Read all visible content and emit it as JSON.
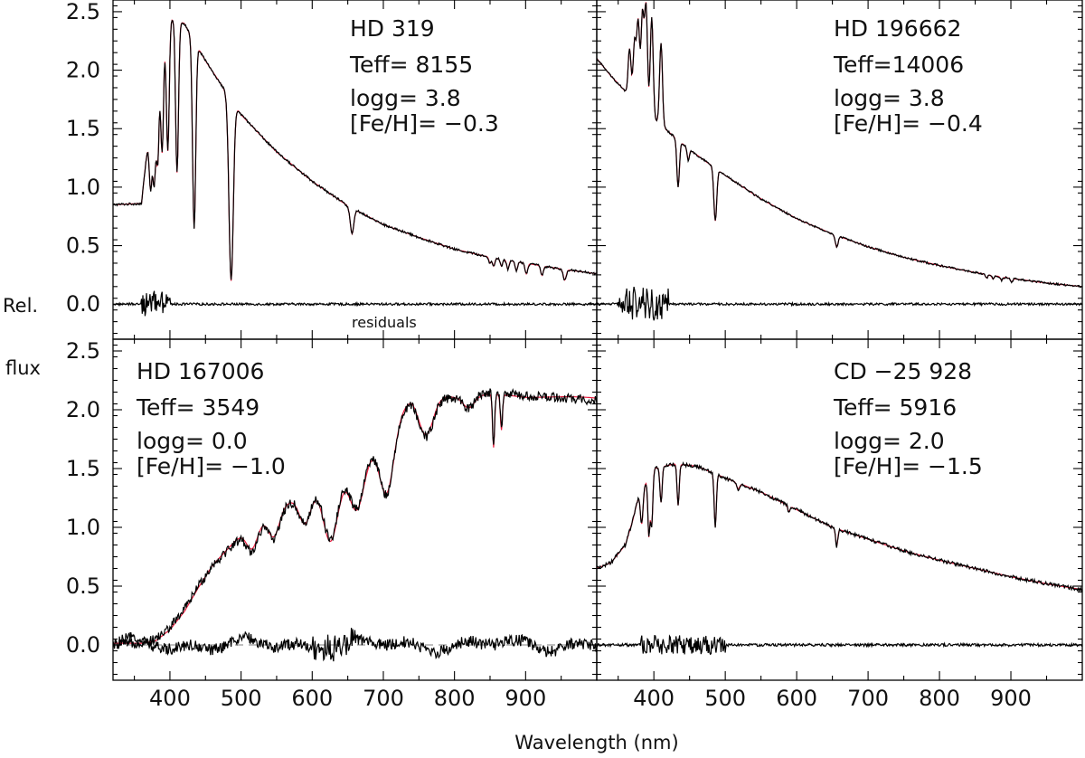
{
  "chart_data": {
    "type": "line",
    "xlabel": "Wavelength (nm)",
    "ylabel_top": "Rel.",
    "ylabel_bottom": "flux",
    "residuals_label": "residuals",
    "xlim": [
      320,
      1000
    ],
    "ylim": [
      -0.3,
      2.6
    ],
    "x_ticks": [
      400,
      500,
      600,
      700,
      800,
      900
    ],
    "x_tick_labels": [
      "400",
      "500",
      "600",
      "700",
      "800",
      "900"
    ],
    "y_ticks": [
      0.0,
      0.5,
      1.0,
      1.5,
      2.0,
      2.5
    ],
    "y_tick_labels": [
      "0.0",
      "0.5",
      "1.0",
      "1.5",
      "2.0",
      "2.5"
    ],
    "series_legend": {
      "observed": "black",
      "model": "red"
    },
    "panels": [
      {
        "id": "hd319",
        "star": "HD 319",
        "teff": "Teff= 8155",
        "logg": "logg=  3.8",
        "feh": "[Fe/H]= −0.3",
        "text_anchor": "right",
        "continuum": [
          [
            320,
            0.85
          ],
          [
            360,
            0.86
          ],
          [
            372,
            1.55
          ],
          [
            385,
            2.25
          ],
          [
            400,
            2.45
          ],
          [
            420,
            2.4
          ],
          [
            450,
            2.08
          ],
          [
            500,
            1.62
          ],
          [
            550,
            1.3
          ],
          [
            600,
            1.05
          ],
          [
            650,
            0.84
          ],
          [
            700,
            0.68
          ],
          [
            750,
            0.57
          ],
          [
            800,
            0.47
          ],
          [
            850,
            0.4
          ],
          [
            900,
            0.35
          ],
          [
            950,
            0.3
          ],
          [
            1000,
            0.26
          ]
        ],
        "lines": [
          [
            373,
            0.6,
            2.0
          ],
          [
            378,
            0.8,
            2.0
          ],
          [
            383,
            0.9,
            2.0
          ],
          [
            389,
            1.0,
            2.0
          ],
          [
            397,
            1.1,
            2.0
          ],
          [
            410,
            1.3,
            2.0
          ],
          [
            434,
            1.6,
            2.2
          ],
          [
            486,
            1.55,
            3.0
          ],
          [
            656,
            0.22,
            2.5
          ],
          [
            850,
            0.05,
            1.6
          ],
          [
            855,
            0.07,
            1.6
          ],
          [
            866,
            0.06,
            1.6
          ],
          [
            875,
            0.08,
            1.6
          ],
          [
            887,
            0.08,
            1.6
          ],
          [
            901,
            0.09,
            1.8
          ],
          [
            923,
            0.08,
            1.8
          ],
          [
            955,
            0.09,
            2.0
          ]
        ],
        "noise": 0.01,
        "model_offset": 0.0,
        "residual": {
          "amp": 0.01,
          "spike_range": [
            360,
            400
          ],
          "spike_amp": 0.11
        }
      },
      {
        "id": "hd196662",
        "star": "HD 196662",
        "teff": "Teff=14006",
        "logg": "logg=  3.8",
        "feh": "[Fe/H]= −0.4",
        "text_anchor": "right",
        "continuum": [
          [
            320,
            2.1
          ],
          [
            340,
            1.95
          ],
          [
            360,
            1.82
          ],
          [
            380,
            1.7
          ],
          [
            400,
            1.58
          ],
          [
            450,
            1.32
          ],
          [
            500,
            1.1
          ],
          [
            550,
            0.9
          ],
          [
            600,
            0.73
          ],
          [
            650,
            0.6
          ],
          [
            700,
            0.49
          ],
          [
            750,
            0.4
          ],
          [
            800,
            0.33
          ],
          [
            850,
            0.27
          ],
          [
            900,
            0.22
          ],
          [
            950,
            0.18
          ],
          [
            1000,
            0.15
          ]
        ],
        "lines": [
          [
            366,
            -0.4,
            2.0
          ],
          [
            373,
            -0.5,
            2.0
          ],
          [
            378,
            -0.7,
            2.0
          ],
          [
            384,
            -0.8,
            2.0
          ],
          [
            389,
            -0.9,
            2.0
          ],
          [
            397,
            -0.85,
            2.0
          ],
          [
            410,
            -0.7,
            2.0
          ],
          [
            434,
            0.4,
            1.8
          ],
          [
            448,
            0.1,
            1.5
          ],
          [
            486,
            0.45,
            2.0
          ],
          [
            656,
            0.1,
            2.0
          ],
          [
            866,
            0.03,
            1.6
          ],
          [
            875,
            0.03,
            1.6
          ],
          [
            887,
            0.03,
            1.6
          ],
          [
            901,
            0.03,
            1.6
          ]
        ],
        "noise": 0.008,
        "model_offset": 0.0,
        "residual": {
          "amp": 0.01,
          "spike_range": [
            350,
            420
          ],
          "spike_amp": 0.14
        }
      },
      {
        "id": "hd167006",
        "star": "HD 167006",
        "teff": "Teff= 3549",
        "logg": "logg=  0.0",
        "feh": "[Fe/H]= −1.0",
        "text_anchor": "left",
        "continuum": [
          [
            320,
            0.0
          ],
          [
            340,
            0.01
          ],
          [
            360,
            0.02
          ],
          [
            380,
            0.05
          ],
          [
            400,
            0.15
          ],
          [
            420,
            0.3
          ],
          [
            440,
            0.5
          ],
          [
            460,
            0.68
          ],
          [
            480,
            0.8
          ],
          [
            500,
            0.92
          ],
          [
            520,
            1.02
          ],
          [
            540,
            1.1
          ],
          [
            560,
            1.18
          ],
          [
            580,
            1.25
          ],
          [
            600,
            1.32
          ],
          [
            620,
            1.38
          ],
          [
            640,
            1.45
          ],
          [
            660,
            1.55
          ],
          [
            680,
            1.65
          ],
          [
            700,
            1.8
          ],
          [
            720,
            1.95
          ],
          [
            740,
            2.08
          ],
          [
            760,
            2.12
          ],
          [
            780,
            2.1
          ],
          [
            800,
            2.1
          ],
          [
            820,
            2.12
          ],
          [
            840,
            2.14
          ],
          [
            860,
            2.15
          ],
          [
            880,
            2.14
          ],
          [
            900,
            2.12
          ],
          [
            950,
            2.1
          ],
          [
            1000,
            2.08
          ]
        ],
        "lines": [
          [
            516,
            0.2,
            8
          ],
          [
            546,
            0.22,
            8
          ],
          [
            590,
            0.25,
            8
          ],
          [
            626,
            0.5,
            10
          ],
          [
            663,
            0.4,
            10
          ],
          [
            705,
            0.55,
            10
          ],
          [
            760,
            0.35,
            10
          ],
          [
            820,
            0.1,
            8
          ],
          [
            855,
            0.45,
            1.5
          ],
          [
            866,
            0.3,
            1.5
          ]
        ],
        "noise": 0.04,
        "model_offset": 0.02,
        "residual": {
          "amp": 0.05,
          "spike_range": [
            600,
            660
          ],
          "spike_amp": 0.1
        }
      },
      {
        "id": "cd25928",
        "star": "CD −25 928",
        "teff": "Teff= 5916",
        "logg": "logg=  2.0",
        "feh": "[Fe/H]= −1.5",
        "text_anchor": "right",
        "continuum": [
          [
            320,
            0.65
          ],
          [
            340,
            0.7
          ],
          [
            360,
            0.85
          ],
          [
            370,
            1.05
          ],
          [
            380,
            1.3
          ],
          [
            400,
            1.5
          ],
          [
            430,
            1.54
          ],
          [
            460,
            1.52
          ],
          [
            500,
            1.42
          ],
          [
            550,
            1.3
          ],
          [
            600,
            1.15
          ],
          [
            650,
            1.0
          ],
          [
            700,
            0.9
          ],
          [
            750,
            0.8
          ],
          [
            800,
            0.72
          ],
          [
            850,
            0.65
          ],
          [
            900,
            0.58
          ],
          [
            950,
            0.52
          ],
          [
            1000,
            0.47
          ]
        ],
        "lines": [
          [
            383,
            0.3,
            2.0
          ],
          [
            393,
            0.5,
            1.5
          ],
          [
            397,
            0.45,
            1.5
          ],
          [
            410,
            0.3,
            1.5
          ],
          [
            434,
            0.35,
            1.5
          ],
          [
            486,
            0.45,
            1.5
          ],
          [
            518,
            0.05,
            2.0
          ],
          [
            589,
            0.05,
            1.5
          ],
          [
            656,
            0.15,
            1.5
          ]
        ],
        "noise": 0.015,
        "model_offset": 0.0,
        "residual": {
          "amp": 0.012,
          "spike_range": [
            380,
            500
          ],
          "spike_amp": 0.08
        }
      }
    ]
  }
}
